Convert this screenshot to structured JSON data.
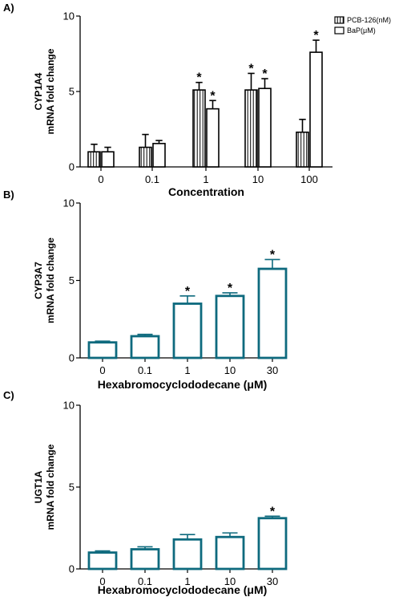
{
  "chart_data": [
    {
      "type": "bar",
      "panel": "A)",
      "title": "",
      "ylabel": [
        "CYP1A4",
        "mRNA fold change"
      ],
      "xlabel": "Concentration",
      "ylim": [
        0,
        10
      ],
      "yticks": [
        0,
        5,
        10
      ],
      "categories": [
        "0",
        "0.1",
        "1",
        "10",
        "100"
      ],
      "legend_position": "top-right",
      "series": [
        {
          "name": "PCB-126(nM)",
          "pattern": "striped",
          "values": [
            1.0,
            1.3,
            5.1,
            5.1,
            2.3
          ],
          "errors": [
            0.5,
            0.85,
            0.5,
            1.1,
            0.85
          ],
          "significant": [
            false,
            false,
            true,
            true,
            false
          ]
        },
        {
          "name": "BaP(μM)",
          "pattern": "open",
          "values": [
            1.0,
            1.55,
            3.85,
            5.2,
            7.6
          ],
          "errors": [
            0.3,
            0.2,
            0.55,
            0.65,
            0.8
          ],
          "significant": [
            false,
            false,
            true,
            true,
            true
          ]
        }
      ],
      "star_symbol": "*"
    },
    {
      "type": "bar",
      "panel": "B)",
      "title": "",
      "ylabel": [
        "CYP3A7",
        "mRNA fold change"
      ],
      "xlabel": "Hexabromocyclododecane (μM)",
      "ylim": [
        0,
        10
      ],
      "yticks": [
        0,
        5,
        10
      ],
      "categories": [
        "0",
        "0.1",
        "1",
        "10",
        "30"
      ],
      "bar_color": "#0e6a7e",
      "series": [
        {
          "name": "",
          "values": [
            1.0,
            1.4,
            3.5,
            4.0,
            5.75
          ],
          "errors": [
            0.08,
            0.12,
            0.5,
            0.2,
            0.6
          ],
          "significant": [
            false,
            false,
            true,
            true,
            true
          ]
        }
      ],
      "star_symbol": "*"
    },
    {
      "type": "bar",
      "panel": "C)",
      "title": "",
      "ylabel": [
        "UGT1A",
        "mRNA fold change"
      ],
      "xlabel": "Hexabromocyclododecane (μM)",
      "ylim": [
        0,
        10
      ],
      "yticks": [
        0,
        5,
        10
      ],
      "categories": [
        "0",
        "0.1",
        "1",
        "10",
        "30"
      ],
      "bar_color": "#0e6a7e",
      "series": [
        {
          "name": "",
          "values": [
            1.0,
            1.2,
            1.8,
            1.95,
            3.1
          ],
          "errors": [
            0.1,
            0.15,
            0.3,
            0.25,
            0.12
          ],
          "significant": [
            false,
            false,
            false,
            false,
            true
          ]
        }
      ],
      "star_symbol": "*"
    }
  ]
}
